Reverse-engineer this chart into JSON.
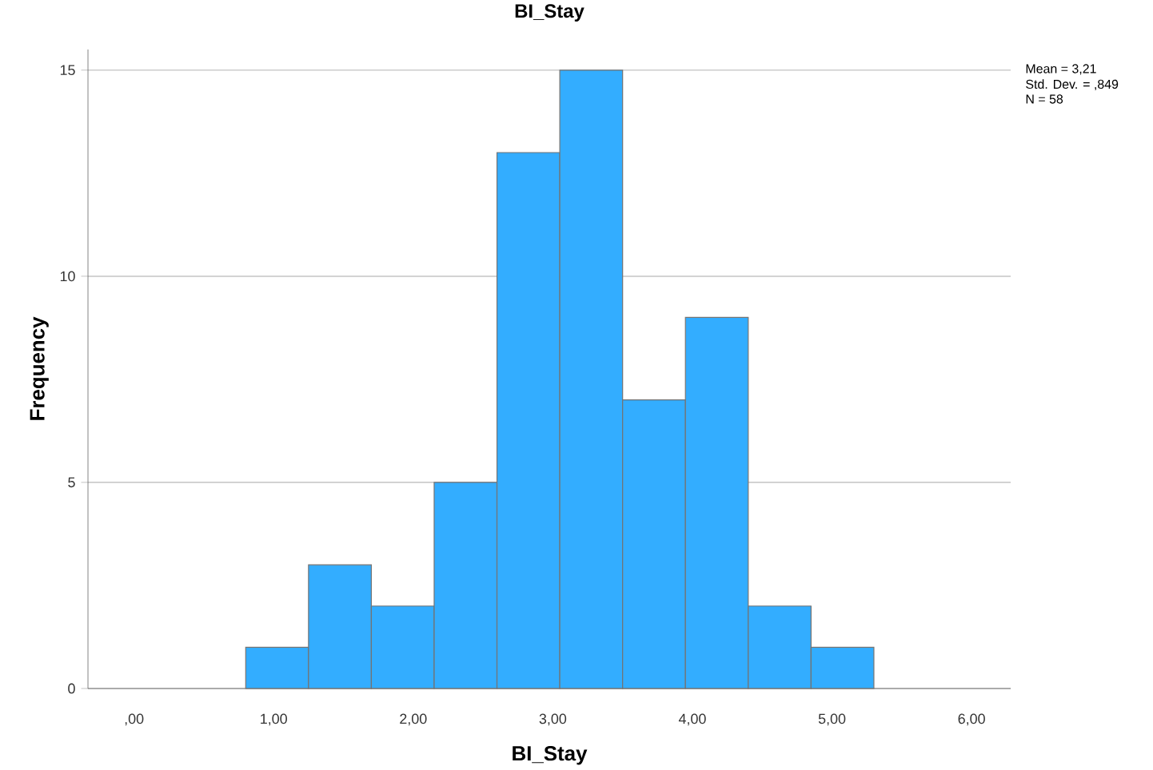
{
  "chart_data": {
    "type": "histogram",
    "title": "BI_Stay",
    "xlabel": "BI_Stay",
    "ylabel": "Frequency",
    "bins": [
      0.8,
      1.25,
      1.7,
      2.15,
      2.6,
      3.05,
      3.5,
      3.95,
      4.4,
      4.85,
      5.3
    ],
    "values": [
      1,
      3,
      2,
      5,
      13,
      15,
      7,
      9,
      2,
      1
    ],
    "color": "#33adff",
    "xlim": [
      -0.33,
      6.28
    ],
    "ylim": [
      0,
      15.5
    ],
    "xticks": [
      {
        "value": 0,
        "label": ",00"
      },
      {
        "value": 1,
        "label": "1,00"
      },
      {
        "value": 2,
        "label": "2,00"
      },
      {
        "value": 3,
        "label": "3,00"
      },
      {
        "value": 4,
        "label": "4,00"
      },
      {
        "value": 5,
        "label": "5,00"
      },
      {
        "value": 6,
        "label": "6,00"
      }
    ],
    "yticks": [
      0,
      5,
      10,
      15
    ],
    "grid": "y",
    "annotations": [
      "Mean = 3,21",
      "Std. Dev. = ,849",
      "N = 58"
    ]
  }
}
